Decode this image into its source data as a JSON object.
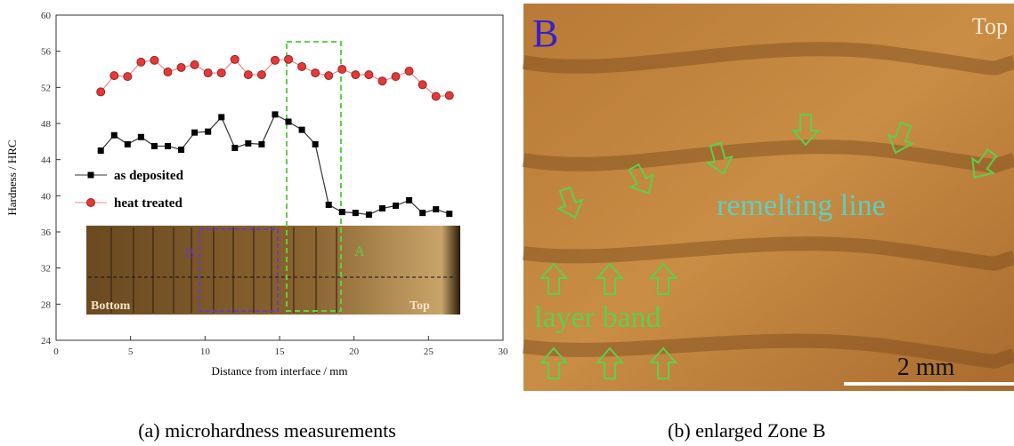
{
  "chart_data": {
    "type": "line",
    "xlabel": "Distance from interface / mm",
    "ylabel": "Hardness / HRC",
    "x": [
      3.0,
      3.9,
      4.8,
      5.7,
      6.6,
      7.5,
      8.4,
      9.3,
      10.2,
      11.1,
      12.0,
      12.9,
      13.8,
      14.7,
      15.6,
      16.5,
      17.4,
      18.3,
      19.2,
      20.1,
      21.0,
      21.9,
      22.8,
      23.7,
      24.6,
      25.5,
      26.4
    ],
    "series": [
      {
        "name": "as deposited",
        "color": "#000000",
        "marker": "square",
        "values": [
          45.0,
          46.7,
          45.7,
          46.5,
          45.5,
          45.5,
          45.1,
          47.0,
          47.1,
          48.7,
          45.3,
          45.8,
          45.7,
          49.0,
          48.2,
          47.3,
          45.7,
          39.0,
          38.2,
          38.1,
          37.9,
          38.6,
          38.9,
          39.5,
          38.1,
          38.5,
          38.0
        ]
      },
      {
        "name": "heat treated",
        "color": "#e03a3a",
        "marker": "circle",
        "values": [
          51.5,
          53.3,
          53.2,
          54.8,
          55.0,
          53.7,
          54.2,
          54.5,
          53.6,
          53.6,
          55.1,
          53.4,
          53.4,
          55.0,
          55.1,
          54.3,
          53.6,
          53.3,
          54.0,
          53.4,
          53.4,
          52.7,
          53.2,
          53.8,
          52.3,
          51.0,
          51.1
        ]
      }
    ],
    "xlim": [
      0,
      30
    ],
    "xticks": [
      0,
      5,
      10,
      15,
      20,
      25,
      30
    ],
    "ylim": [
      24,
      60
    ],
    "yticks": [
      24,
      28,
      32,
      36,
      40,
      44,
      48,
      52,
      56,
      60
    ],
    "legend": "left"
  },
  "inset": {
    "zone_b": "B",
    "zone_a": "A",
    "left": "Bottom",
    "right": "Top"
  },
  "micrograph": {
    "panel": "B",
    "corner": "Top",
    "remelting": "remelting line",
    "layer": "layer band",
    "scale": "2 mm"
  },
  "captions": [
    "(a) microhardness measurements",
    "(b) enlarged Zone B"
  ]
}
